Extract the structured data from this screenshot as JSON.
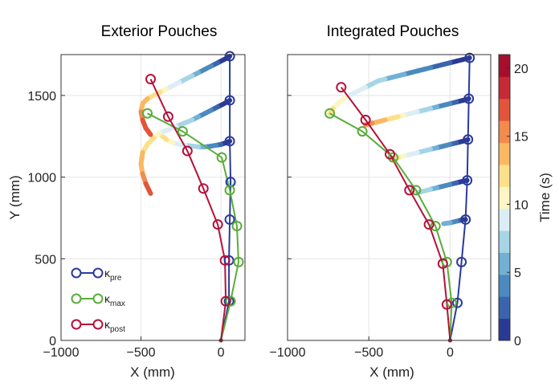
{
  "chart_data": [
    {
      "type": "line",
      "title": "Exterior Pouches",
      "xlabel": "X (mm)",
      "ylabel": "Y (mm)",
      "xlim": [
        -1000,
        150
      ],
      "ylim": [
        0,
        1750
      ],
      "xticks": [
        -1000,
        -500,
        0
      ],
      "yticks": [
        0,
        500,
        1000,
        1500
      ],
      "grid": true,
      "legend": {
        "position": "bottom-left",
        "entries": [
          {
            "name": "κpre",
            "base": "κ",
            "sub": "pre",
            "color": "#2b3a9c"
          },
          {
            "name": "κmax",
            "base": "κ",
            "sub": "max",
            "color": "#5aac3a"
          },
          {
            "name": "κpost",
            "base": "κ",
            "sub": "post",
            "color": "#b5113a"
          }
        ]
      },
      "series": [
        {
          "name": "κpre",
          "color": "#2b3a9c",
          "x": [
            0,
            50,
            50,
            55,
            60,
            55,
            55,
            55
          ],
          "y": [
            0,
            240,
            490,
            740,
            970,
            1220,
            1470,
            1740
          ]
        },
        {
          "name": "κmax",
          "color": "#5aac3a",
          "x": [
            0,
            60,
            110,
            100,
            55,
            5,
            -240,
            -460
          ],
          "y": [
            0,
            240,
            480,
            700,
            920,
            1120,
            1280,
            1390
          ]
        },
        {
          "name": "κpost",
          "color": "#b5113a",
          "x": [
            0,
            30,
            25,
            -20,
            -110,
            -210,
            -330,
            -440
          ],
          "y": [
            0,
            240,
            490,
            710,
            930,
            1160,
            1370,
            1600
          ]
        }
      ],
      "trajectories": [
        {
          "x": [
            55,
            60,
            70,
            80
          ],
          "y": [
            970,
            965,
            960,
            955
          ],
          "t": [
            8,
            8.5,
            9,
            9.5
          ]
        },
        {
          "x": [
            55,
            30,
            0,
            -30,
            -60,
            -100,
            -140,
            -180,
            -220,
            -260,
            -300,
            -340,
            -380
          ],
          "y": [
            1220,
            1210,
            1200,
            1195,
            1190,
            1185,
            1185,
            1190,
            1195,
            1200,
            1210,
            1230,
            1260
          ],
          "t": [
            0,
            1,
            2,
            3,
            4,
            5,
            6,
            7,
            8,
            9,
            10,
            11,
            12
          ]
        },
        {
          "x": [
            55,
            20,
            -20,
            -60,
            -100,
            -140,
            -180,
            -230,
            -280,
            -330,
            -380,
            -420,
            -460,
            -490,
            -500,
            -490,
            -470,
            -440
          ],
          "y": [
            1470,
            1450,
            1430,
            1410,
            1390,
            1370,
            1350,
            1330,
            1310,
            1290,
            1270,
            1240,
            1200,
            1150,
            1080,
            1020,
            960,
            900
          ],
          "t": [
            0,
            1,
            2,
            3,
            4,
            5,
            6,
            7,
            8,
            9,
            10,
            11,
            12,
            13,
            14,
            15,
            16,
            17
          ]
        },
        {
          "x": [
            55,
            20,
            -20,
            -60,
            -100,
            -140,
            -180,
            -220,
            -260,
            -300,
            -340,
            -380,
            -420,
            -460,
            -490,
            -500,
            -490,
            -470,
            -440
          ],
          "y": [
            1740,
            1720,
            1700,
            1680,
            1660,
            1640,
            1620,
            1600,
            1580,
            1560,
            1540,
            1520,
            1500,
            1480,
            1450,
            1400,
            1350,
            1300,
            1260
          ],
          "t": [
            0,
            1,
            2,
            3,
            4,
            5,
            6,
            7,
            8,
            9,
            10,
            11,
            12,
            13,
            14,
            15,
            16,
            17,
            18
          ]
        }
      ]
    },
    {
      "type": "line",
      "title": "Integrated Pouches",
      "xlabel": "X (mm)",
      "ylabel": "",
      "xlim": [
        -1000,
        250
      ],
      "ylim": [
        0,
        1750
      ],
      "xticks": [
        -1000,
        -500,
        0
      ],
      "yticks": [
        0,
        500,
        1000,
        1500
      ],
      "grid": true,
      "series": [
        {
          "name": "κpre",
          "color": "#2b3a9c",
          "x": [
            0,
            45,
            70,
            95,
            105,
            110,
            115,
            120
          ],
          "y": [
            0,
            230,
            480,
            740,
            980,
            1230,
            1480,
            1730
          ]
        },
        {
          "name": "κmax",
          "color": "#5aac3a",
          "x": [
            0,
            10,
            -20,
            -90,
            -210,
            -350,
            -540,
            -740
          ],
          "y": [
            0,
            230,
            480,
            700,
            920,
            1120,
            1280,
            1390
          ]
        },
        {
          "name": "κpost",
          "color": "#b5113a",
          "x": [
            0,
            -20,
            -45,
            -130,
            -250,
            -370,
            -520,
            -670
          ],
          "y": [
            0,
            220,
            470,
            710,
            920,
            1140,
            1350,
            1550
          ]
        }
      ],
      "trajectories": [
        {
          "x": [
            95,
            80,
            60,
            40,
            20,
            0,
            -40
          ],
          "y": [
            740,
            740,
            735,
            730,
            725,
            720,
            715
          ],
          "t": [
            0,
            1,
            2,
            3,
            4,
            5,
            6
          ]
        },
        {
          "x": [
            105,
            80,
            40,
            0,
            -40,
            -80,
            -120,
            -160,
            -200
          ],
          "y": [
            980,
            975,
            965,
            955,
            945,
            935,
            925,
            915,
            905
          ],
          "t": [
            0,
            1,
            2,
            3,
            4,
            5,
            6,
            7,
            8
          ]
        },
        {
          "x": [
            110,
            80,
            40,
            0,
            -40,
            -80,
            -120,
            -160,
            -200,
            -240,
            -280,
            -320,
            -360
          ],
          "y": [
            1230,
            1220,
            1210,
            1200,
            1190,
            1180,
            1170,
            1160,
            1150,
            1140,
            1130,
            1120,
            1110
          ],
          "t": [
            0,
            1,
            2,
            3,
            4,
            5,
            6,
            7,
            8,
            9,
            10,
            11,
            12
          ]
        },
        {
          "x": [
            115,
            80,
            40,
            0,
            -40,
            -80,
            -120,
            -160,
            -200,
            -240,
            -280,
            -320,
            -360,
            -400,
            -440,
            -480,
            -520
          ],
          "y": [
            1480,
            1470,
            1460,
            1450,
            1440,
            1430,
            1420,
            1410,
            1400,
            1390,
            1380,
            1370,
            1360,
            1350,
            1340,
            1330,
            1320
          ],
          "t": [
            0,
            1,
            2,
            3,
            4,
            5,
            6,
            7,
            8,
            9,
            10,
            11,
            12,
            13,
            14,
            15,
            16
          ]
        },
        {
          "x": [
            120,
            80,
            40,
            0,
            -40,
            -80,
            -120,
            -160,
            -200,
            -240,
            -280,
            -320,
            -360,
            -400,
            -440,
            -480,
            -520,
            -560,
            -600,
            -640,
            -680,
            -720,
            -740
          ],
          "y": [
            1730,
            1720,
            1710,
            1700,
            1690,
            1680,
            1670,
            1660,
            1650,
            1640,
            1630,
            1620,
            1610,
            1600,
            1590,
            1570,
            1550,
            1530,
            1510,
            1490,
            1460,
            1420,
            1390
          ],
          "t": [
            0,
            0.5,
            1,
            1.5,
            2,
            2.5,
            3,
            3.5,
            4,
            4.5,
            5,
            5.5,
            6,
            6.5,
            7,
            7.5,
            8,
            8.5,
            9,
            9.5,
            10,
            11,
            12
          ]
        }
      ]
    }
  ],
  "colorbar": {
    "label": "Time (s)",
    "min": 0,
    "max": 21,
    "ticks": [
      0,
      5,
      10,
      15,
      20
    ],
    "colors": [
      "#2a3a94",
      "#3a64ad",
      "#4a8ac0",
      "#72b0d6",
      "#a6d5e6",
      "#dceef5",
      "#fbf6c4",
      "#fde08a",
      "#fbb863",
      "#f38a4e",
      "#e2553a",
      "#c62a36",
      "#a70d2c"
    ]
  }
}
